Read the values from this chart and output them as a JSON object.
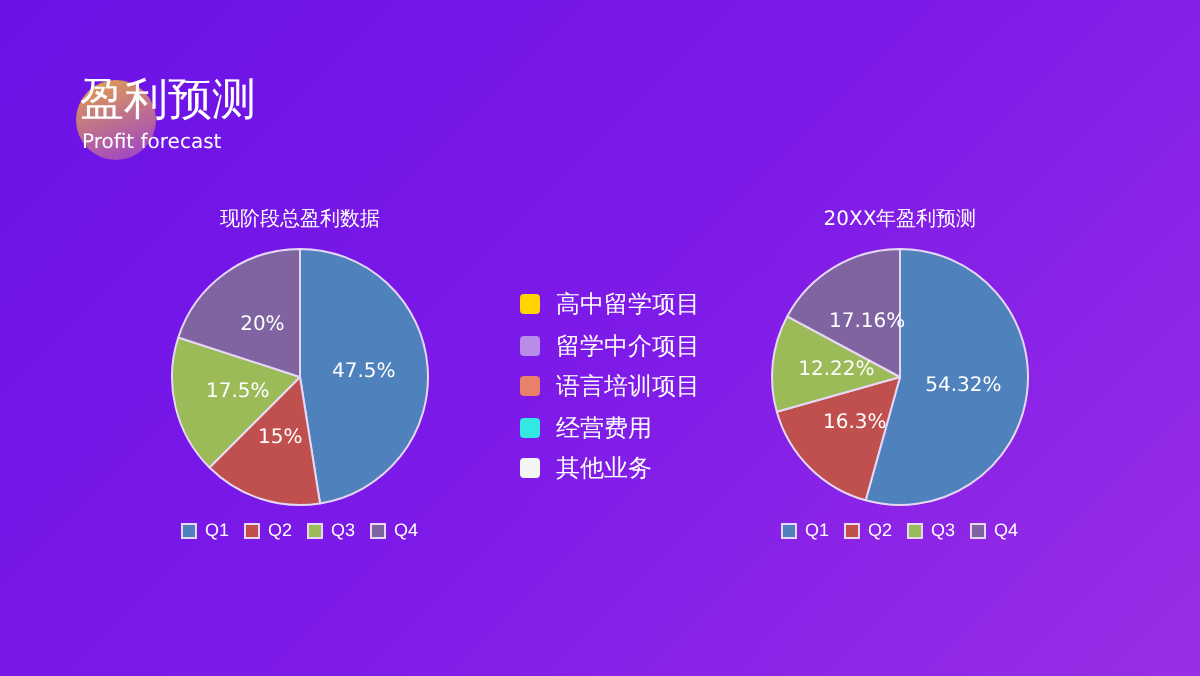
{
  "chart_data": [
    {
      "type": "pie",
      "title": "现阶段总盈利数据",
      "categories": [
        "Q1",
        "Q2",
        "Q3",
        "Q4"
      ],
      "values": [
        47.5,
        15,
        17.5,
        20
      ],
      "colors": [
        "#4f81bd",
        "#c0504d",
        "#9bbb59",
        "#8064a2"
      ],
      "value_labels": [
        "47.5%",
        "15%",
        "17.5%",
        "20%"
      ],
      "legend": "bottom"
    },
    {
      "type": "other",
      "title": "盈利预测",
      "subtitle": "Profit forecast",
      "annotations": [
        "高中留学项目",
        "留学中介项目",
        "语言培训项目",
        "经营费用",
        "其他业务"
      ]
    },
    {
      "type": "pie",
      "title": "20XX年盈利预测",
      "categories": [
        "Q1",
        "Q2",
        "Q3",
        "Q4"
      ],
      "values": [
        54.32,
        16.3,
        12.22,
        17.16
      ],
      "colors": [
        "#4f81bd",
        "#c0504d",
        "#9bbb59",
        "#8064a2"
      ],
      "value_labels": [
        "54.32%",
        "16.3%",
        "12.22%",
        "17.16%"
      ],
      "legend": "bottom"
    }
  ]
}
